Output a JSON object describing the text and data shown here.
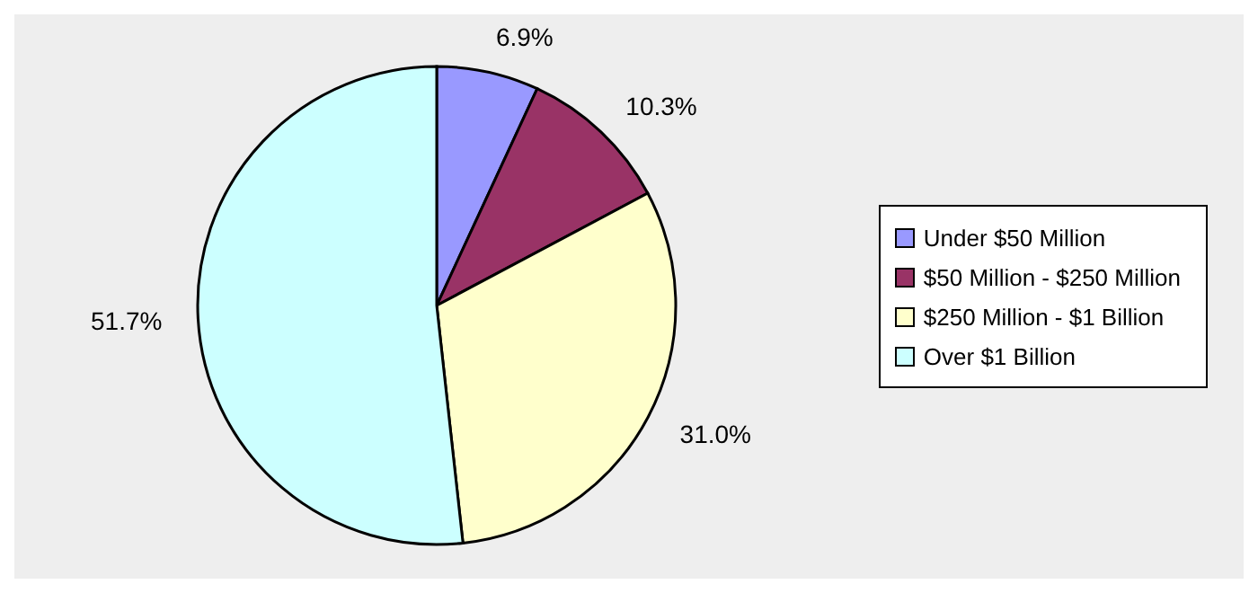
{
  "chart_data": {
    "type": "pie",
    "categories": [
      "Under $50 Million",
      "$50 Million - $250 Million",
      "$250 Million - $1 Billion",
      "Over $1 Billion"
    ],
    "values": [
      6.9,
      10.3,
      31.0,
      51.7
    ],
    "colors": [
      "#9999ff",
      "#993366",
      "#ffffcc",
      "#ccffff"
    ],
    "value_labels": [
      "6.9%",
      "10.3%",
      "31.0%",
      "51.7%"
    ],
    "legend": "right"
  }
}
